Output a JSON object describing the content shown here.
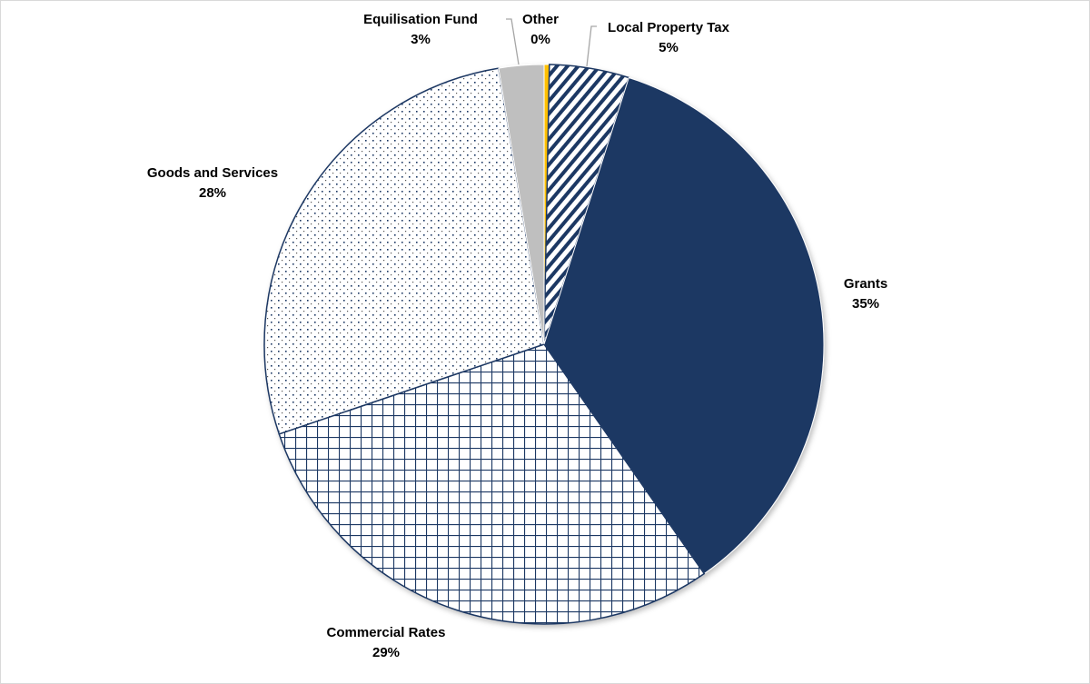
{
  "chart_data": {
    "type": "pie",
    "title": "",
    "start": "top",
    "direction": "clockwise",
    "slices": [
      {
        "name": "Other",
        "value": 0.3,
        "label_pct": "0%",
        "color": "#ffc000",
        "pattern": "solid"
      },
      {
        "name": "Local Property Tax",
        "value": 4.6,
        "label_pct": "5%",
        "color": "#1f3864",
        "pattern": "diagonal"
      },
      {
        "name": "Grants",
        "value": 35.4,
        "label_pct": "35%",
        "color": "#1f3864",
        "pattern": "solid"
      },
      {
        "name": "Commercial Rates",
        "value": 29.5,
        "label_pct": "29%",
        "color": "#1f3864",
        "pattern": "grid"
      },
      {
        "name": "Goods and Services",
        "value": 27.6,
        "label_pct": "28%",
        "color": "#1f3864",
        "pattern": "dots"
      },
      {
        "name": "Equilisation  Fund",
        "value": 2.6,
        "label_pct": "3%",
        "color": "#bfbfbf",
        "pattern": "solid"
      }
    ]
  }
}
